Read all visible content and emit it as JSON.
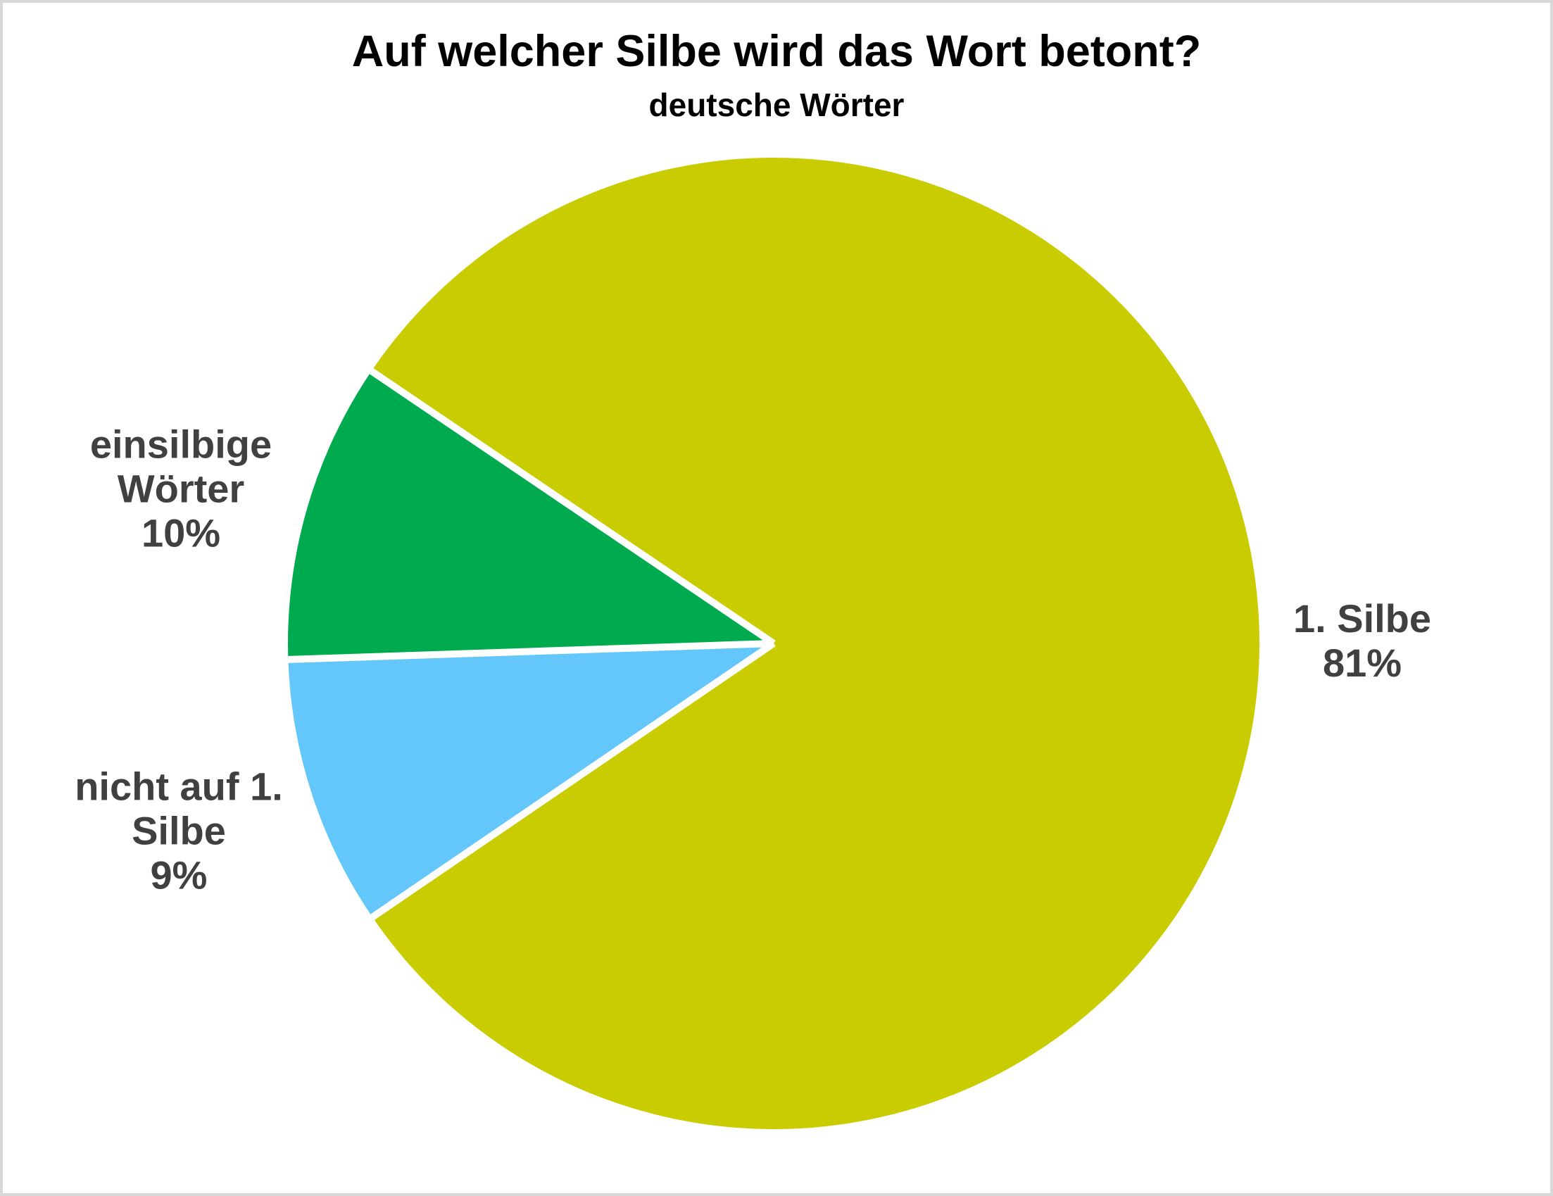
{
  "chart_data": {
    "type": "pie",
    "title": "Auf welcher Silbe wird das Wort betont?",
    "subtitle": "deutsche Wörter",
    "unit": "%",
    "categories": [
      "1. Silbe",
      "einsilbige Wörter",
      "nicht auf 1. Silbe"
    ],
    "values": [
      81,
      10,
      9
    ],
    "slices": [
      {
        "name": "1. Silbe",
        "pct": 81,
        "color": "#C9CC00",
        "label_lines": [
          "1. Silbe",
          "81%"
        ]
      },
      {
        "name": "einsilbige Wörter",
        "pct": 10,
        "color": "#00AB50",
        "label_lines": [
          "einsilbige",
          "Wörter",
          "10%"
        ]
      },
      {
        "name": "nicht auf 1. Silbe",
        "pct": 9,
        "color": "#64C7FB",
        "label_lines": [
          "nicht auf 1.",
          "Silbe",
          "9%"
        ]
      }
    ],
    "layout": {
      "labels_position": "outside",
      "legend": "none",
      "direction": "clockwise",
      "start_angle_screen_deg": 214.1,
      "separator_color": "#FFFFFF",
      "label_text_color": "#404040",
      "title_color": "#000000",
      "frame_border_color": "#D8D8D8",
      "background_color": "#FFFFFF"
    }
  }
}
